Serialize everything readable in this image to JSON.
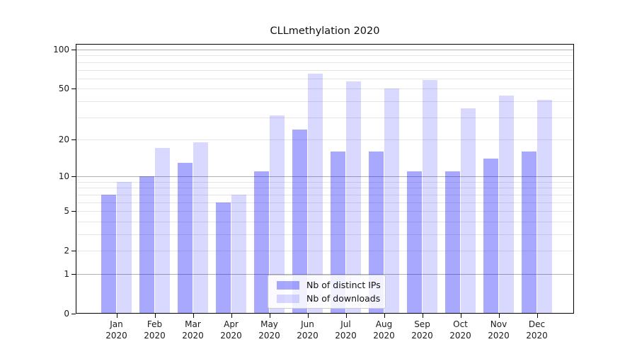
{
  "chart_data": {
    "type": "bar",
    "title": "CLLmethylation 2020",
    "categories": [
      "Jan",
      "Feb",
      "Mar",
      "Apr",
      "May",
      "Jun",
      "Jul",
      "Aug",
      "Sep",
      "Oct",
      "Nov",
      "Dec"
    ],
    "year": "2020",
    "series": [
      {
        "name": "Nb of distinct IPs",
        "color": "#0000ff",
        "alpha": 0.34,
        "values": [
          7,
          10,
          13,
          6,
          11,
          24,
          16,
          16,
          11,
          11,
          14,
          16
        ]
      },
      {
        "name": "Nb of downloads",
        "color": "#0000ff",
        "alpha": 0.15,
        "values": [
          9,
          17,
          19,
          7,
          31,
          65,
          57,
          50,
          58,
          35,
          44,
          41
        ]
      }
    ],
    "y_axis": {
      "scale": "log1p",
      "tick_labels": [
        100,
        50,
        20,
        10,
        5,
        2,
        1,
        0
      ],
      "major_gridlines": [
        1,
        10,
        100
      ],
      "light_gridlines": [
        2,
        3,
        4,
        5,
        6,
        7,
        8,
        9,
        20,
        30,
        40,
        50,
        60,
        70,
        80,
        90
      ],
      "ylim": [
        0,
        110.5
      ]
    },
    "legend_position": "lower center",
    "grid": true,
    "colors": {
      "axis": "#000000",
      "grid_major": "#b0b0b0",
      "grid_minor": "#e5e5e5",
      "background": "#ffffff"
    }
  }
}
